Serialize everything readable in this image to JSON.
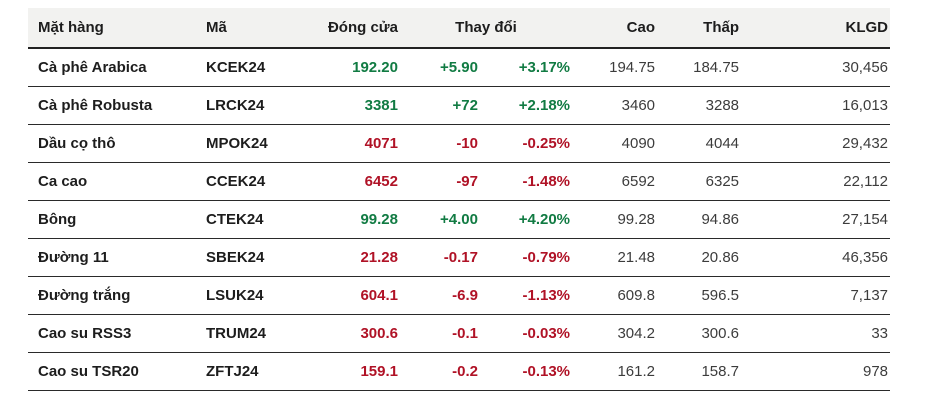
{
  "colors": {
    "up_green": "#117b43",
    "down_red": "#b01226",
    "header_background": "#f2f2f0",
    "text_dark": "#1d1d1d"
  },
  "table": {
    "headers": {
      "name": "Mặt hàng",
      "code": "Mã",
      "close": "Đóng cửa",
      "change": "Thay đổi",
      "high": "Cao",
      "low": "Thấp",
      "volume": "KLGD"
    },
    "rows": [
      {
        "name": "Cà phê Arabica",
        "code": "KCEK24",
        "close": "192.20",
        "change": "+5.90",
        "change_pct": "+3.17%",
        "high": "194.75",
        "low": "184.75",
        "volume": "30,456",
        "direction": "up"
      },
      {
        "name": "Cà phê Robusta",
        "code": "LRCK24",
        "close": "3381",
        "change": "+72",
        "change_pct": "+2.18%",
        "high": "3460",
        "low": "3288",
        "volume": "16,013",
        "direction": "up"
      },
      {
        "name": "Dầu cọ thô",
        "code": "MPOK24",
        "close": "4071",
        "change": "-10",
        "change_pct": "-0.25%",
        "high": "4090",
        "low": "4044",
        "volume": "29,432",
        "direction": "down"
      },
      {
        "name": "Ca cao",
        "code": "CCEK24",
        "close": "6452",
        "change": "-97",
        "change_pct": "-1.48%",
        "high": "6592",
        "low": "6325",
        "volume": "22,112",
        "direction": "down"
      },
      {
        "name": "Bông",
        "code": "CTEK24",
        "close": "99.28",
        "change": "+4.00",
        "change_pct": "+4.20%",
        "high": "99.28",
        "low": "94.86",
        "volume": "27,154",
        "direction": "up"
      },
      {
        "name": "Đường 11",
        "code": "SBEK24",
        "close": "21.28",
        "change": "-0.17",
        "change_pct": "-0.79%",
        "high": "21.48",
        "low": "20.86",
        "volume": "46,356",
        "direction": "down"
      },
      {
        "name": "Đường trắng",
        "code": "LSUK24",
        "close": "604.1",
        "change": "-6.9",
        "change_pct": "-1.13%",
        "high": "609.8",
        "low": "596.5",
        "volume": "7,137",
        "direction": "down"
      },
      {
        "name": "Cao su RSS3",
        "code": "TRUM24",
        "close": "300.6",
        "change": "-0.1",
        "change_pct": "-0.03%",
        "high": "304.2",
        "low": "300.6",
        "volume": "33",
        "direction": "down"
      },
      {
        "name": "Cao su TSR20",
        "code": "ZFTJ24",
        "close": "159.1",
        "change": "-0.2",
        "change_pct": "-0.13%",
        "high": "161.2",
        "low": "158.7",
        "volume": "978",
        "direction": "down"
      }
    ]
  }
}
